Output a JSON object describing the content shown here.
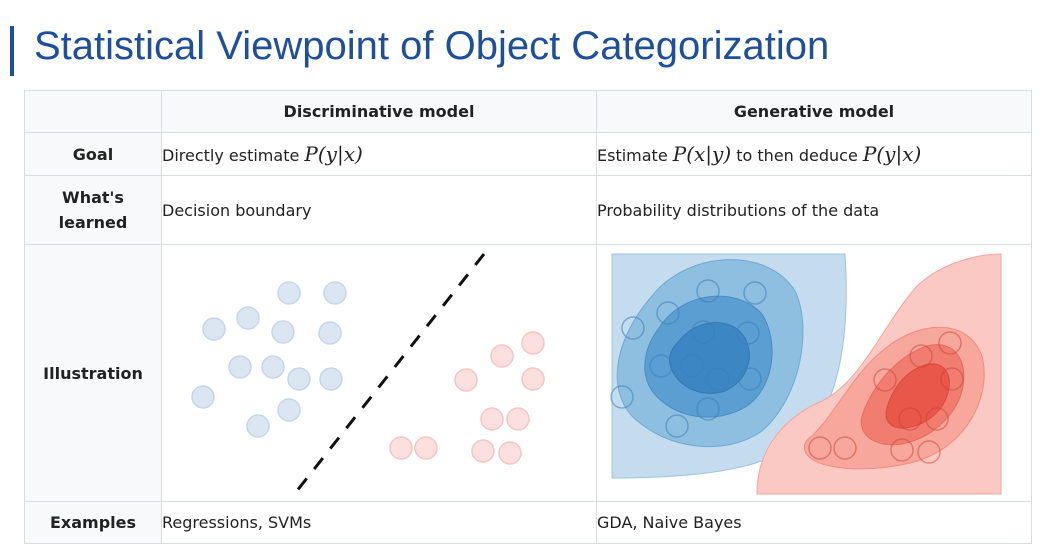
{
  "slide": {
    "title": "Statistical Viewpoint of Object Categorization"
  },
  "table": {
    "headers": [
      "",
      "Discriminative model",
      "Generative model"
    ],
    "rows": {
      "goal": {
        "label": "Goal",
        "discriminative_prefix": "Directly estimate",
        "discriminative_math": "P(y|x)",
        "generative_prefix": "Estimate",
        "generative_math1": "P(x|y)",
        "generative_mid": "to then deduce",
        "generative_math2": "P(y|x)"
      },
      "learned": {
        "label_line1": "What's",
        "label_line2": "learned",
        "discriminative": "Decision boundary",
        "generative": "Probability distributions of the data"
      },
      "illustration": {
        "label": "Illustration"
      },
      "examples": {
        "label": "Examples",
        "discriminative": "Regressions, SVMs",
        "generative": "GDA, Naive Bayes"
      }
    }
  },
  "colors": {
    "title": "#1f4e9b",
    "blue_point_fill": "#dce6f2",
    "blue_point_stroke": "#c6d6ea",
    "red_point_fill": "#fbe0df",
    "red_point_stroke": "#f3c6c4",
    "blue_contours": [
      "#c4dcee",
      "#8fbfe0",
      "#5b9fd2",
      "#3d86c4"
    ],
    "red_contours": [
      "#fbc9c4",
      "#f7a79c",
      "#f17d70",
      "#e9564a"
    ]
  }
}
